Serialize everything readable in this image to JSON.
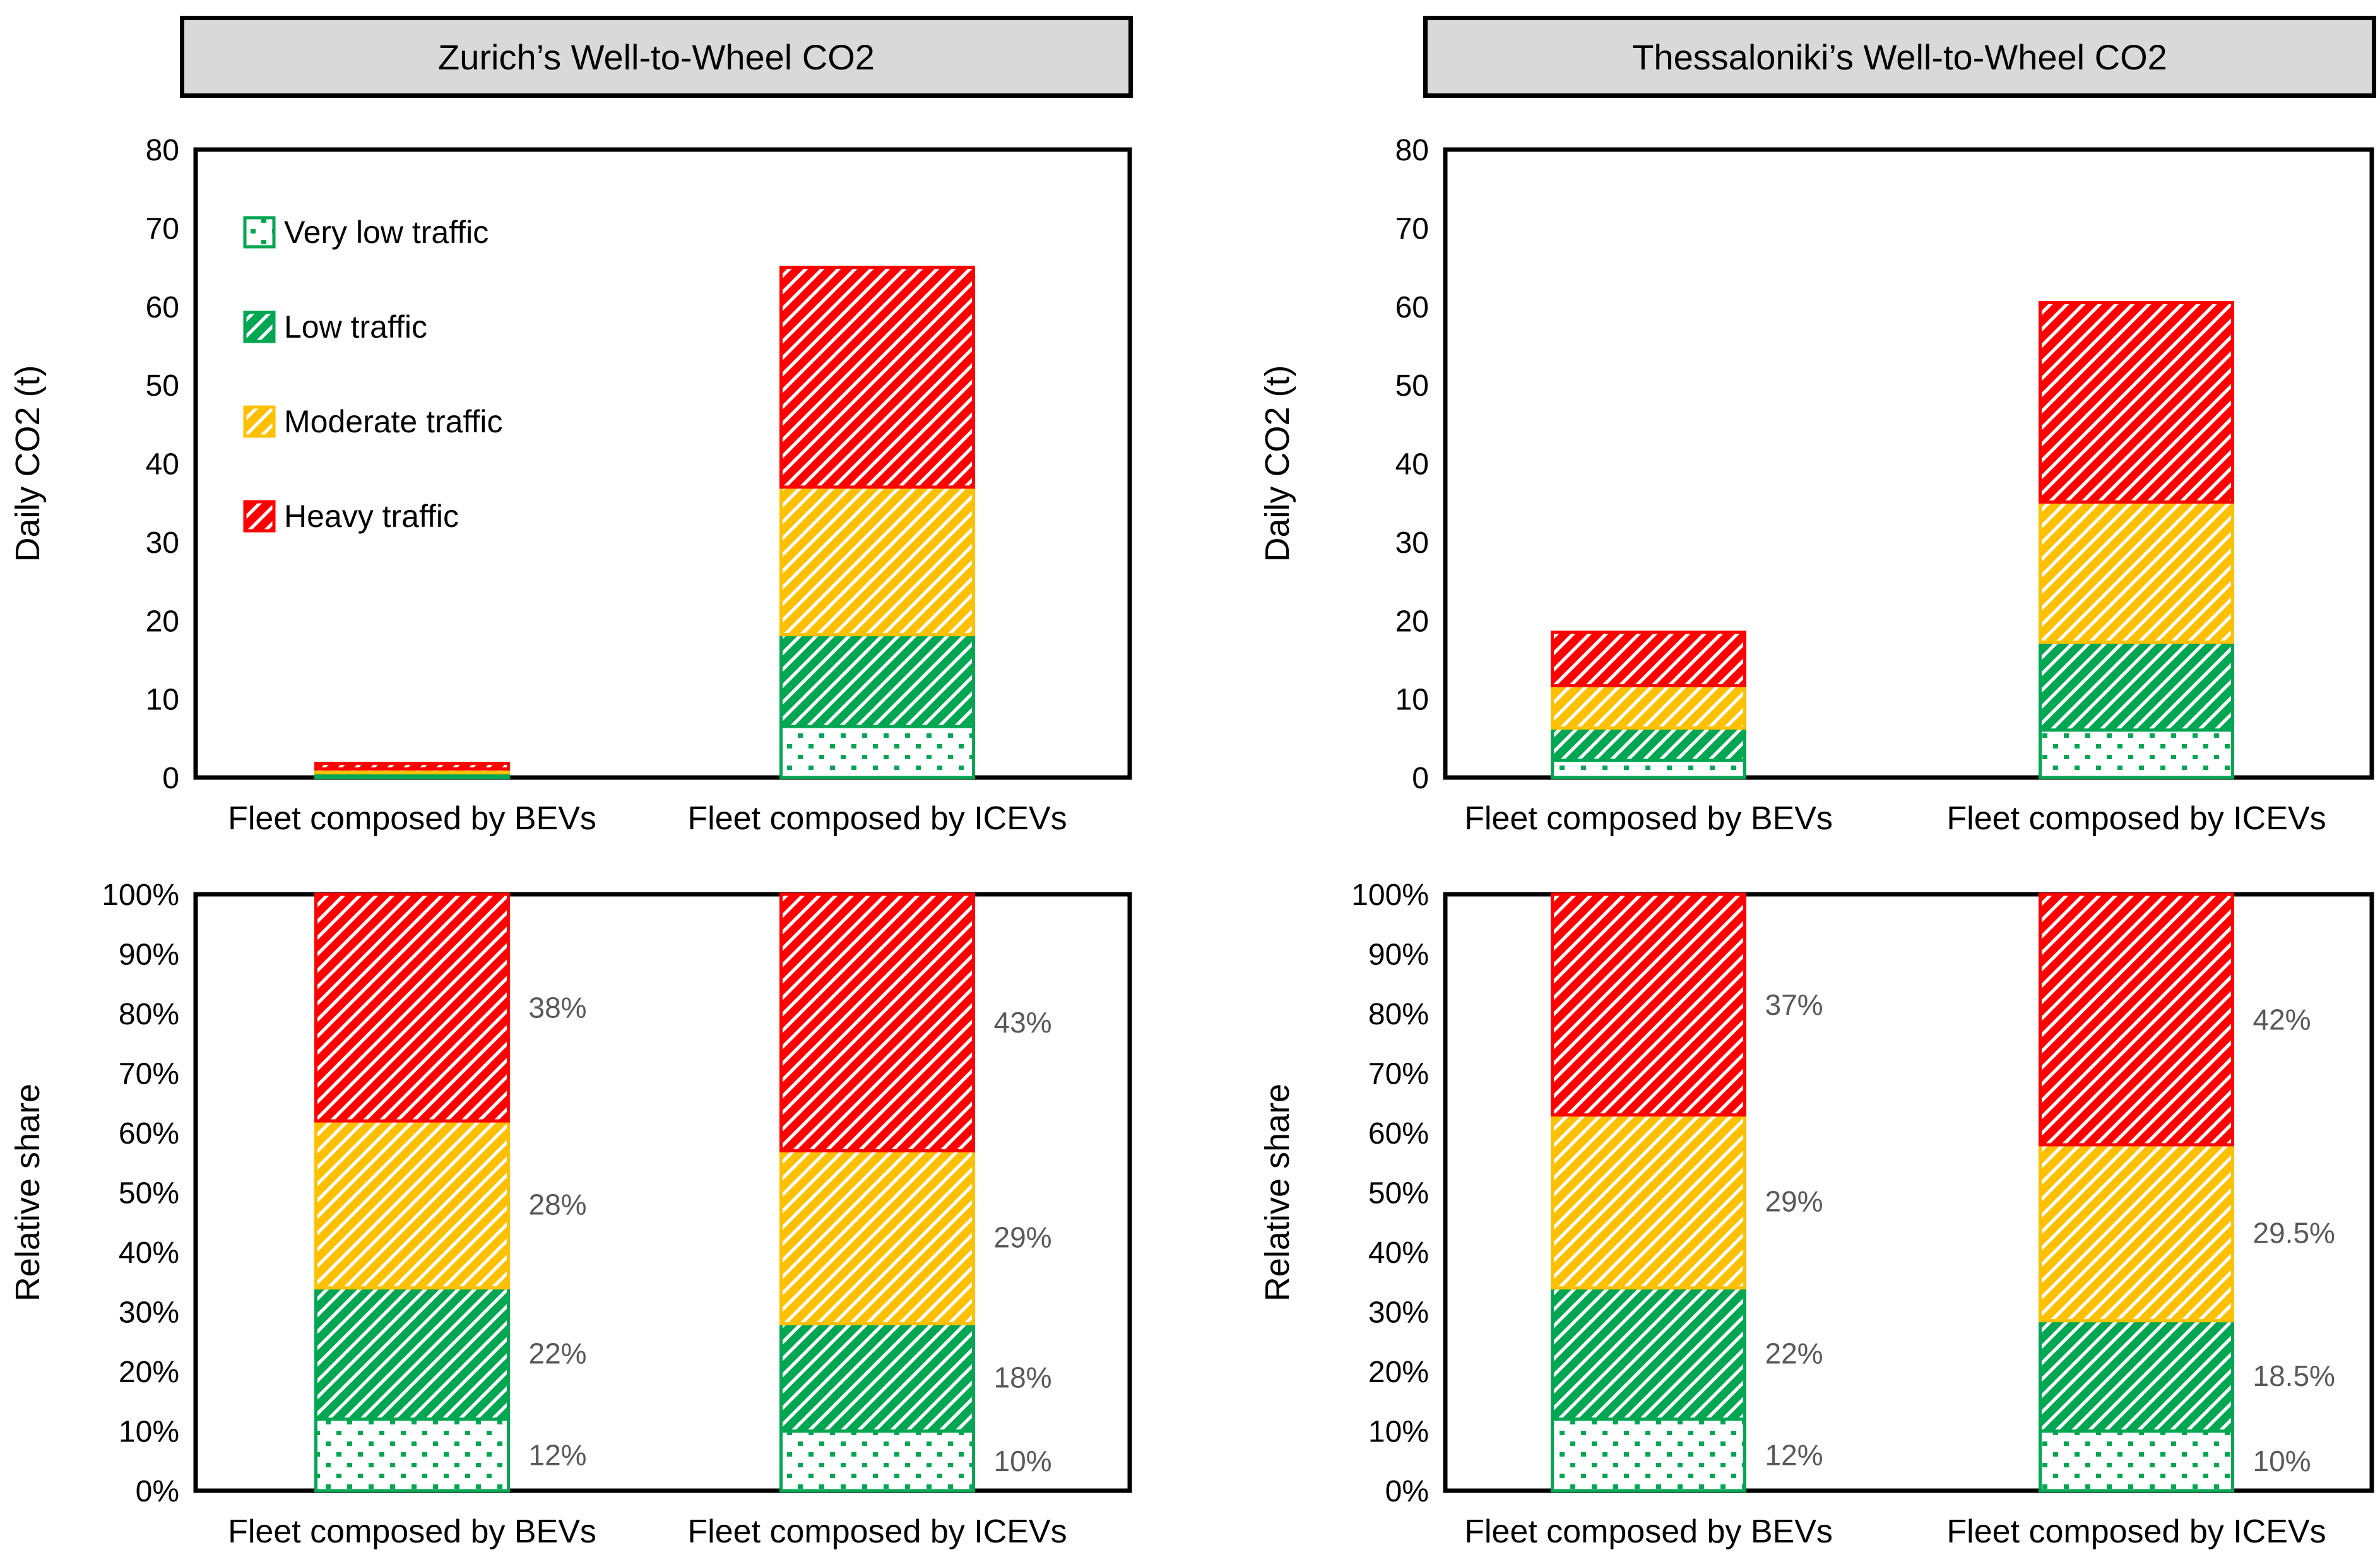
{
  "figure": {
    "background": "#FFFFFF",
    "text_color": "#000000",
    "segment_label_color": "#595959",
    "title_box_fill": "#D9D9D9",
    "title_box_border": "#000000"
  },
  "colors": {
    "very_low": "#00A651",
    "low": "#00A651",
    "moderate": "#FFC000",
    "heavy": "#FF0000"
  },
  "legend": {
    "items": [
      {
        "label": "Very low traffic",
        "pattern": "dots",
        "color": "#00A651"
      },
      {
        "label": "Low traffic",
        "pattern": "diagonal-hatch",
        "color": "#00A651"
      },
      {
        "label": "Moderate traffic",
        "pattern": "diagonal-hatch",
        "color": "#FFC000"
      },
      {
        "label": "Heavy traffic",
        "pattern": "diagonal-hatch",
        "color": "#FF0000"
      }
    ],
    "position": "top-left-inside"
  },
  "chart_data": [
    {
      "id": "zurich-daily-co2",
      "type": "bar",
      "stacked": true,
      "title": "Zurich’s Well-to-Wheel CO2",
      "xlabel": "",
      "ylabel": "Daily CO2 (t)",
      "ylim": [
        0,
        80
      ],
      "ytick_step": 10,
      "ytick_suffix": "",
      "grid": false,
      "categories": [
        "Fleet composed by BEVs",
        "Fleet composed by ICEVs"
      ],
      "series": [
        {
          "name": "Very low traffic",
          "values": [
            0.2,
            6.5
          ]
        },
        {
          "name": "Low traffic",
          "values": [
            0.4,
            11.7
          ]
        },
        {
          "name": "Moderate traffic",
          "values": [
            0.5,
            18.8
          ]
        },
        {
          "name": "Heavy traffic",
          "values": [
            0.7,
            28.0
          ]
        }
      ],
      "totals": [
        1.8,
        65
      ],
      "show_legend": true,
      "show_segment_labels": false
    },
    {
      "id": "thessaloniki-daily-co2",
      "type": "bar",
      "stacked": true,
      "title": "Thessaloniki’s Well-to-Wheel CO2",
      "xlabel": "",
      "ylabel": "Daily CO2 (t)",
      "ylim": [
        0,
        80
      ],
      "ytick_step": 10,
      "ytick_suffix": "",
      "grid": false,
      "categories": [
        "Fleet composed by BEVs",
        "Fleet composed by ICEVs"
      ],
      "series": [
        {
          "name": "Very low traffic",
          "values": [
            2.2,
            6.05
          ]
        },
        {
          "name": "Low traffic",
          "values": [
            4.1,
            11.2
          ]
        },
        {
          "name": "Moderate traffic",
          "values": [
            5.4,
            17.85
          ]
        },
        {
          "name": "Heavy traffic",
          "values": [
            6.8,
            25.4
          ]
        }
      ],
      "totals": [
        18.5,
        60.5
      ],
      "show_legend": false,
      "show_segment_labels": false
    },
    {
      "id": "zurich-relative-share",
      "type": "bar",
      "stacked": true,
      "title": "",
      "xlabel": "",
      "ylabel": "Relative share",
      "ylim": [
        0,
        100
      ],
      "ytick_step": 10,
      "ytick_suffix": "%",
      "grid": false,
      "categories": [
        "Fleet composed by BEVs",
        "Fleet composed by ICEVs"
      ],
      "series": [
        {
          "name": "Very low traffic",
          "values": [
            12,
            10
          ]
        },
        {
          "name": "Low traffic",
          "values": [
            22,
            18
          ]
        },
        {
          "name": "Moderate traffic",
          "values": [
            28,
            29
          ]
        },
        {
          "name": "Heavy traffic",
          "values": [
            38,
            43
          ]
        }
      ],
      "segment_labels": [
        [
          "12%",
          "10%"
        ],
        [
          "22%",
          "18%"
        ],
        [
          "28%",
          "29%"
        ],
        [
          "38%",
          "43%"
        ]
      ],
      "show_legend": false,
      "show_segment_labels": true
    },
    {
      "id": "thessaloniki-relative-share",
      "type": "bar",
      "stacked": true,
      "title": "",
      "xlabel": "",
      "ylabel": "Relative share",
      "ylim": [
        0,
        100
      ],
      "ytick_step": 10,
      "ytick_suffix": "%",
      "grid": false,
      "categories": [
        "Fleet composed by BEVs",
        "Fleet composed by ICEVs"
      ],
      "series": [
        {
          "name": "Very low traffic",
          "values": [
            12,
            10
          ]
        },
        {
          "name": "Low traffic",
          "values": [
            22,
            18.5
          ]
        },
        {
          "name": "Moderate traffic",
          "values": [
            29,
            29.5
          ]
        },
        {
          "name": "Heavy traffic",
          "values": [
            37,
            42
          ]
        }
      ],
      "segment_labels": [
        [
          "12%",
          "10%"
        ],
        [
          "22%",
          "18.5%"
        ],
        [
          "29%",
          "29.5%"
        ],
        [
          "37%",
          "42%"
        ]
      ],
      "show_legend": false,
      "show_segment_labels": true
    }
  ]
}
